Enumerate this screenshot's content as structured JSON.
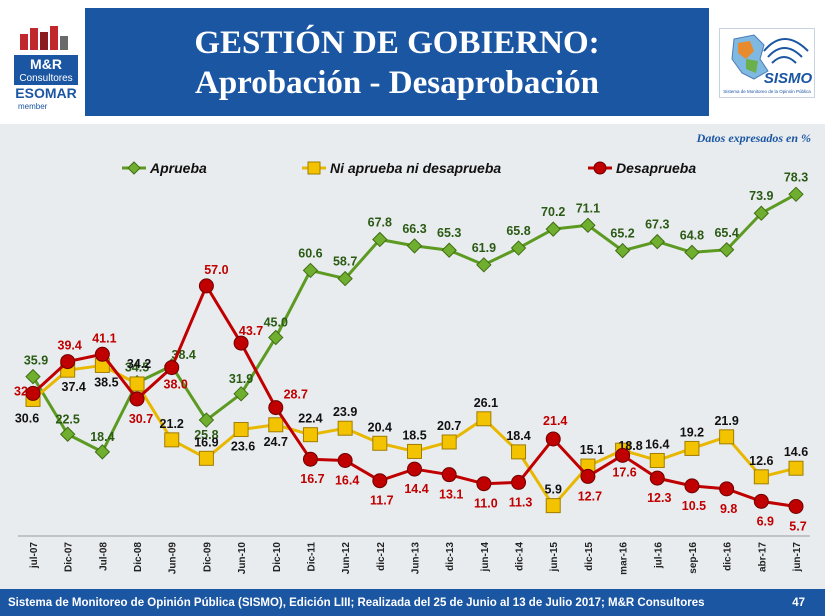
{
  "header": {
    "title_line1": "GESTIÓN DE GOBIERNO:",
    "title_line2": "Aprobación - Desaprobación",
    "logo_left": {
      "line1": "M&R",
      "line2": "Consultores",
      "line3": "ESOMAR",
      "line4": "member"
    },
    "logo_right": {
      "name": "SISMO",
      "caption": "Sistema de Monitoreo de la Opinión Pública"
    }
  },
  "chart_data": {
    "type": "line",
    "note": "Datos expresados en %",
    "categories": [
      "jul-07",
      "Dic-07",
      "Jul-08",
      "Dic-08",
      "Jun-09",
      "Dic-09",
      "Jun-10",
      "Dic-10",
      "Dic-11",
      "Jun-12",
      "dic-12",
      "Jun-13",
      "dic-13",
      "jun-14",
      "dic-14",
      "jun-15",
      "dic-15",
      "mar-16",
      "jul-16",
      "sep-16",
      "dic-16",
      "abr-17",
      "jun-17"
    ],
    "ylim": [
      0,
      90
    ],
    "series": [
      {
        "name": "Aprueba",
        "color": "#5c9a22",
        "marker": "diamond",
        "values": [
          35.9,
          22.5,
          18.4,
          34.5,
          38.4,
          25.8,
          31.9,
          45.0,
          60.6,
          58.7,
          67.8,
          66.3,
          65.3,
          61.9,
          65.8,
          70.2,
          71.1,
          65.2,
          67.3,
          64.8,
          65.4,
          73.9,
          78.3
        ],
        "labels": [
          "35.9",
          "22.5",
          "18.4",
          "34.5",
          "38.4",
          "25.8",
          "31.9",
          "45.0",
          "60.6",
          "58.7",
          "67.8",
          "66.3",
          "65.3",
          "61.9",
          "65.8",
          "70.2",
          "71.1",
          "65.2",
          "67.3",
          "64.8",
          "65.4",
          "73.9",
          "78.3"
        ]
      },
      {
        "name": "Ni aprueba ni desaprueba",
        "color": "#e8b800",
        "marker": "square",
        "values": [
          30.6,
          37.4,
          38.5,
          34.2,
          21.2,
          16.9,
          23.6,
          24.7,
          22.4,
          23.9,
          20.4,
          18.5,
          20.7,
          26.1,
          18.4,
          5.9,
          15.1,
          18.8,
          16.4,
          19.2,
          21.9,
          12.6,
          14.6
        ],
        "labels": [
          "30.6",
          "37.4",
          "38.5",
          "34.2",
          "21.2",
          "16.9",
          "23.6",
          "24.7",
          "22.4",
          "23.9",
          "20.4",
          "18.5",
          "20.7",
          "26.1",
          "18.4",
          "5.9",
          "15.1",
          "18.8",
          "16.4",
          "19.2",
          "21.9",
          "12.6",
          "14.6"
        ]
      },
      {
        "name": "Desaprueba",
        "color": "#c00000",
        "marker": "circle",
        "values": [
          32.0,
          39.4,
          41.1,
          30.7,
          38.0,
          57.0,
          43.7,
          28.7,
          16.7,
          16.4,
          11.7,
          14.4,
          13.1,
          11.0,
          11.3,
          21.4,
          12.7,
          17.6,
          12.3,
          10.5,
          9.8,
          6.9,
          5.7
        ],
        "labels": [
          "32",
          "39.4",
          "41.1",
          "30.7",
          "38.0",
          "57.0",
          "43.7",
          "28.7",
          "16.7",
          "16.4",
          "11.7",
          "14.4",
          "13.1",
          "11.0",
          "11.3",
          "21.4",
          "12.7",
          "17.6",
          "12.3",
          "10.5",
          "9.8",
          "6.9",
          "5.7"
        ]
      }
    ]
  },
  "footer": {
    "text": "Sistema de Monitoreo de Opinión Pública (SISMO), Edición LIII; Realizada del 25 de Junio al 13 de Julio 2017; M&R Consultores",
    "page_number": "47"
  }
}
